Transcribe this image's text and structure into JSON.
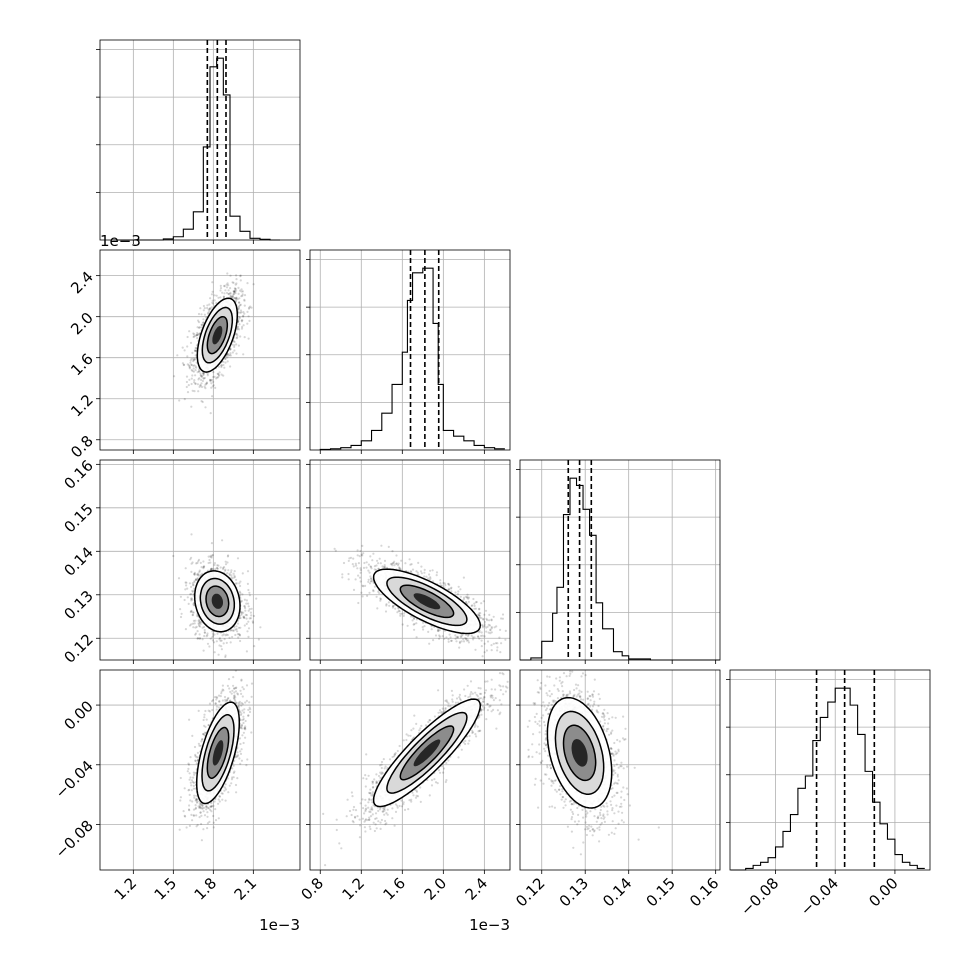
{
  "chart_data": {
    "type": "corner",
    "title": "",
    "parameters": [
      {
        "xlim": [
          0.95,
          2.45
        ],
        "ticks": [
          1.2,
          1.5,
          1.8,
          2.1
        ],
        "tick_labels": [
          "1.2",
          "1.5",
          "1.8",
          "2.1"
        ],
        "offset_label": "1e−3",
        "hist": {
          "edges": [
            1.05,
            1.125,
            1.2,
            1.275,
            1.35,
            1.425,
            1.5,
            1.575,
            1.65,
            1.725,
            1.775,
            1.825,
            1.875,
            1.925,
            2.0,
            2.075,
            2.15,
            2.225,
            2.3
          ],
          "counts": [
            0,
            0,
            0,
            0,
            0,
            0.5,
            1.5,
            5,
            13,
            43,
            80,
            84,
            67,
            11,
            4,
            0.8,
            0.3,
            0
          ]
        },
        "quantiles": [
          1.755,
          1.83,
          1.895
        ]
      },
      {
        "xlim": [
          0.7,
          2.65
        ],
        "ticks": [
          0.8,
          1.2,
          1.6,
          2.0,
          2.4
        ],
        "tick_labels": [
          "0.8",
          "1.2",
          "1.6",
          "2.0",
          "2.4"
        ],
        "yticks": [
          0.8,
          1.2,
          1.6,
          2.0,
          2.4
        ],
        "ytick_labels": [
          "0.8",
          "1.2",
          "1.6",
          "2.0",
          "2.4"
        ],
        "offset_label": "1e−3",
        "hist": {
          "edges": [
            0.8,
            0.9,
            1.0,
            1.1,
            1.2,
            1.3,
            1.4,
            1.5,
            1.6,
            1.65,
            1.7,
            1.8,
            1.9,
            1.95,
            2.0,
            2.1,
            2.2,
            2.3,
            2.4,
            2.5,
            2.6
          ],
          "counts": [
            0.5,
            1,
            2,
            4,
            8,
            17,
            32,
            57,
            85,
            130,
            154,
            158,
            110,
            57,
            17,
            12,
            8,
            4,
            2,
            1
          ]
        },
        "quantiles": [
          1.68,
          1.82,
          1.955
        ]
      },
      {
        "xlim": [
          0.115,
          0.161
        ],
        "ticks": [
          0.12,
          0.13,
          0.14,
          0.15,
          0.16
        ],
        "tick_labels": [
          "0.12",
          "0.13",
          "0.14",
          "0.15",
          "0.16"
        ],
        "yticks": [
          0.12,
          0.13,
          0.14,
          0.15,
          0.16
        ],
        "ytick_labels": [
          "0.12",
          "0.13",
          "0.14",
          "0.15",
          "0.16"
        ],
        "hist": {
          "edges": [
            0.115,
            0.1175,
            0.12,
            0.1225,
            0.1235,
            0.125,
            0.1265,
            0.128,
            0.1295,
            0.131,
            0.1325,
            0.134,
            0.1365,
            0.1385,
            0.14,
            0.1425,
            0.145,
            0.161
          ],
          "counts": [
            0,
            2,
            18,
            45,
            70,
            140,
            175,
            168,
            145,
            120,
            55,
            30,
            8,
            4,
            1,
            1,
            0
          ]
        },
        "quantiles": [
          0.1261,
          0.1287,
          0.1314
        ]
      },
      {
        "xlim": [
          -0.1105,
          0.0235
        ],
        "ticks": [
          -0.08,
          -0.04,
          0.0
        ],
        "tick_labels": [
          "−0.08",
          "−0.04",
          "0.00"
        ],
        "yticks": [
          -0.08,
          -0.04,
          0.0
        ],
        "ytick_labels": [
          "−0.08",
          "−0.04",
          "0.00"
        ],
        "hist": {
          "edges": [
            -0.11,
            -0.1,
            -0.095,
            -0.09,
            -0.085,
            -0.08,
            -0.075,
            -0.07,
            -0.065,
            -0.06,
            -0.055,
            -0.05,
            -0.045,
            -0.04,
            -0.035,
            -0.03,
            -0.025,
            -0.02,
            -0.015,
            -0.01,
            -0.005,
            0.0,
            0.005,
            0.01,
            0.015,
            0.02
          ],
          "counts": [
            0,
            1,
            3,
            5,
            8,
            15,
            25,
            36,
            53,
            61,
            84,
            99,
            109,
            118,
            118,
            107,
            88,
            64,
            44,
            30,
            20,
            10,
            5,
            3,
            1
          ]
        },
        "quantiles": [
          -0.0525,
          -0.0337,
          -0.0138
        ]
      }
    ],
    "pair_panels": [
      {
        "row": 1,
        "col": 0,
        "center": [
          1.83,
          1.82
        ],
        "sd": [
          0.075,
          0.18
        ],
        "corr": 0.55,
        "levels": [
          0.5,
          1.0,
          1.5,
          2.0
        ],
        "n_points": 1700
      },
      {
        "row": 2,
        "col": 0,
        "center": [
          1.83,
          0.1285
        ],
        "sd": [
          0.085,
          0.0035
        ],
        "corr": -0.15,
        "levels": [
          0.5,
          1.0,
          1.5,
          2.0
        ],
        "n_points": 1500
      },
      {
        "row": 2,
        "col": 1,
        "center": [
          1.84,
          0.1285
        ],
        "sd": [
          0.26,
          0.0037
        ],
        "corr": -0.75,
        "levels": [
          0.5,
          1.0,
          1.5,
          2.0
        ],
        "n_points": 1700
      },
      {
        "row": 3,
        "col": 0,
        "center": [
          1.835,
          -0.032
        ],
        "sd": [
          0.08,
          0.017
        ],
        "corr": 0.6,
        "levels": [
          0.5,
          1.0,
          1.5,
          2.0
        ],
        "n_points": 1500
      },
      {
        "row": 3,
        "col": 1,
        "center": [
          1.84,
          -0.032
        ],
        "sd": [
          0.26,
          0.018
        ],
        "corr": 0.88,
        "levels": [
          0.5,
          1.0,
          1.5,
          2.0
        ],
        "n_points": 1700
      },
      {
        "row": 3,
        "col": 2,
        "center": [
          0.1287,
          -0.032
        ],
        "sd": [
          0.0037,
          0.0185
        ],
        "corr": -0.35,
        "levels": [
          0.5,
          1.0,
          1.5,
          2.0
        ],
        "n_points": 1700
      }
    ]
  }
}
